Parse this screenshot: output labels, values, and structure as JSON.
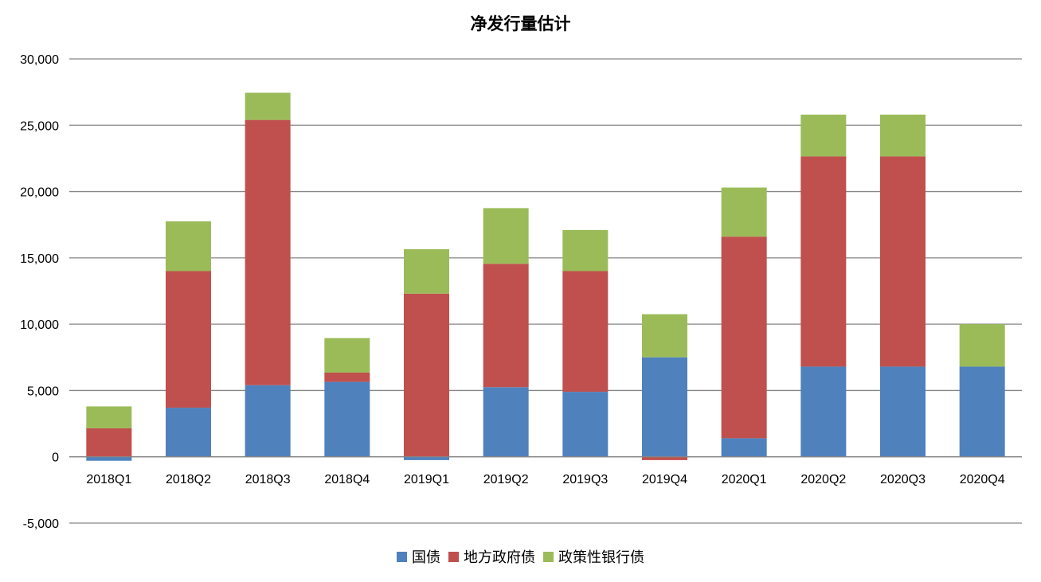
{
  "chart_data": {
    "type": "bar",
    "stacked": true,
    "title": "净发行量估计",
    "xlabel": "",
    "ylabel": "",
    "ylim": [
      -5000,
      30000
    ],
    "yticks": [
      -5000,
      0,
      5000,
      10000,
      15000,
      20000,
      25000,
      30000
    ],
    "ytick_labels": [
      "-5,000",
      "0",
      "5,000",
      "10,000",
      "15,000",
      "20,000",
      "25,000",
      "30,000"
    ],
    "grid": true,
    "legend_position": "bottom",
    "categories": [
      "2018Q1",
      "2018Q2",
      "2018Q3",
      "2018Q4",
      "2019Q1",
      "2019Q2",
      "2019Q3",
      "2019Q4",
      "2020Q1",
      "2020Q2",
      "2020Q3",
      "2020Q4"
    ],
    "series": [
      {
        "name": "国债",
        "color": "#4F81BD",
        "values": [
          -300,
          3700,
          5400,
          5650,
          -250,
          5250,
          4900,
          7500,
          1400,
          6800,
          6800,
          6800
        ]
      },
      {
        "name": "地方政府债",
        "color": "#C0504D",
        "values": [
          2150,
          10300,
          20000,
          700,
          12300,
          9300,
          9100,
          -250,
          15200,
          15850,
          15850,
          0
        ]
      },
      {
        "name": "政策性银行债",
        "color": "#9BBB59",
        "values": [
          1650,
          3750,
          2050,
          2600,
          3350,
          4200,
          3100,
          3250,
          3700,
          3150,
          3150,
          3200
        ]
      }
    ]
  }
}
